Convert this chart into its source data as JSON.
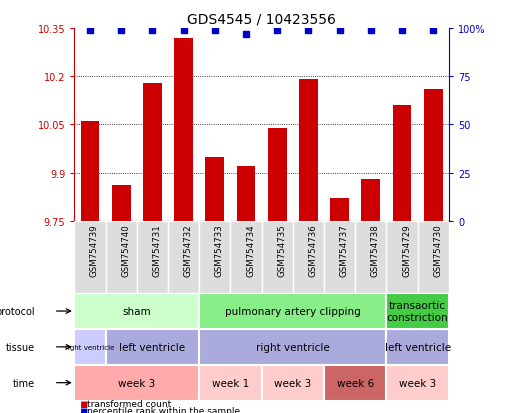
{
  "title": "GDS4545 / 10423556",
  "samples": [
    "GSM754739",
    "GSM754740",
    "GSM754731",
    "GSM754732",
    "GSM754733",
    "GSM754734",
    "GSM754735",
    "GSM754736",
    "GSM754737",
    "GSM754738",
    "GSM754729",
    "GSM754730"
  ],
  "bar_values": [
    10.06,
    9.86,
    10.18,
    10.32,
    9.95,
    9.92,
    10.04,
    10.19,
    9.82,
    9.88,
    10.11,
    10.16
  ],
  "dot_values": [
    99,
    99,
    99,
    99,
    99,
    97,
    99,
    99,
    99,
    99,
    99,
    99
  ],
  "ylim_left": [
    9.75,
    10.35
  ],
  "ylim_right": [
    0,
    100
  ],
  "yticks_left": [
    9.75,
    9.9,
    10.05,
    10.2,
    10.35
  ],
  "yticks_right": [
    0,
    25,
    50,
    75,
    100
  ],
  "ytick_labels_right": [
    "0",
    "25",
    "50",
    "75",
    "100%"
  ],
  "bar_color": "#cc0000",
  "dot_color": "#0000cc",
  "background_color": "#ffffff",
  "protocol_row": {
    "groups": [
      {
        "label": "sham",
        "start": 0,
        "end": 4,
        "color": "#ccffcc"
      },
      {
        "label": "pulmonary artery clipping",
        "start": 4,
        "end": 10,
        "color": "#88ee88"
      },
      {
        "label": "transaortic\nconstriction",
        "start": 10,
        "end": 12,
        "color": "#44cc44"
      }
    ]
  },
  "tissue_row": {
    "groups": [
      {
        "label": "right ventricle",
        "start": 0,
        "end": 1,
        "color": "#ccccff"
      },
      {
        "label": "left ventricle",
        "start": 1,
        "end": 4,
        "color": "#aaaadd"
      },
      {
        "label": "right ventricle",
        "start": 4,
        "end": 10,
        "color": "#aaaadd"
      },
      {
        "label": "left ventricle",
        "start": 10,
        "end": 12,
        "color": "#aaaadd"
      }
    ]
  },
  "time_row": {
    "groups": [
      {
        "label": "week 3",
        "start": 0,
        "end": 4,
        "color": "#ffaaaa"
      },
      {
        "label": "week 1",
        "start": 4,
        "end": 6,
        "color": "#ffcccc"
      },
      {
        "label": "week 3",
        "start": 6,
        "end": 8,
        "color": "#ffcccc"
      },
      {
        "label": "week 6",
        "start": 8,
        "end": 10,
        "color": "#cc6666"
      },
      {
        "label": "week 3",
        "start": 10,
        "end": 12,
        "color": "#ffcccc"
      }
    ]
  },
  "row_labels": [
    "protocol",
    "tissue",
    "time"
  ],
  "legend_items": [
    {
      "label": "transformed count",
      "color": "#cc0000"
    },
    {
      "label": "percentile rank within the sample",
      "color": "#0000cc"
    }
  ],
  "xticklabel_bg": "#dddddd",
  "xticklabel_border": "#aaaaaa"
}
